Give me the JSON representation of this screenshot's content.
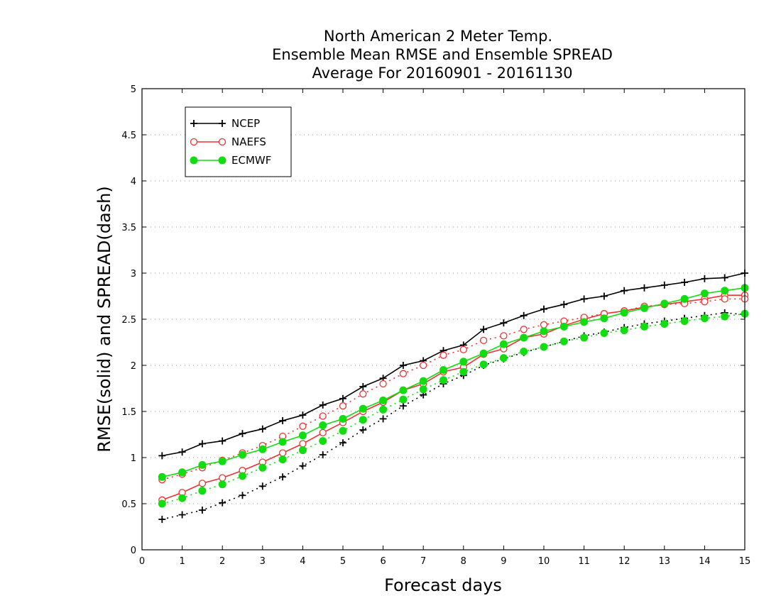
{
  "chart_data": {
    "type": "line",
    "title": [
      "North American 2 Meter Temp.",
      "Ensemble Mean RMSE and Ensemble SPREAD",
      "Average For 20160901 - 20161130"
    ],
    "xlabel": "Forecast days",
    "ylabel": "RMSE(solid) and SPREAD(dash)",
    "xlim": [
      0,
      15
    ],
    "ylim": [
      0,
      5
    ],
    "x_ticks": [
      "0",
      "1",
      "2",
      "3",
      "4",
      "5",
      "6",
      "7",
      "8",
      "9",
      "10",
      "11",
      "12",
      "13",
      "14",
      "15"
    ],
    "y_ticks": [
      "0",
      "0.5",
      "1",
      "1.5",
      "2",
      "2.5",
      "3",
      "3.5",
      "4",
      "4.5",
      "5"
    ],
    "grid": "horizontal dotted",
    "legend_position": "top-left",
    "x": [
      0.5,
      1,
      1.5,
      2,
      2.5,
      3,
      3.5,
      4,
      4.5,
      5,
      5.5,
      6,
      6.5,
      7,
      7.5,
      8,
      8.5,
      9,
      9.5,
      10,
      10.5,
      11,
      11.5,
      12,
      12.5,
      13,
      13.5,
      14,
      14.5,
      15
    ],
    "series": [
      {
        "name": "NCEP",
        "color": "#000000",
        "marker": "plus",
        "rmse": [
          1.02,
          1.06,
          1.15,
          1.18,
          1.26,
          1.31,
          1.4,
          1.46,
          1.57,
          1.64,
          1.77,
          1.86,
          2.0,
          2.05,
          2.16,
          2.22,
          2.39,
          2.46,
          2.54,
          2.61,
          2.66,
          2.72,
          2.75,
          2.81,
          2.84,
          2.87,
          2.9,
          2.94,
          2.95,
          3.0
        ],
        "spread": [
          0.33,
          0.38,
          0.43,
          0.51,
          0.59,
          0.69,
          0.79,
          0.91,
          1.03,
          1.16,
          1.3,
          1.42,
          1.56,
          1.68,
          1.8,
          1.89,
          2.0,
          2.07,
          2.14,
          2.2,
          2.26,
          2.32,
          2.36,
          2.41,
          2.45,
          2.48,
          2.51,
          2.54,
          2.57,
          2.55
        ]
      },
      {
        "name": "NAEFS",
        "color": "#ee3333",
        "marker": "open-circle",
        "rmse": [
          0.54,
          0.62,
          0.72,
          0.78,
          0.86,
          0.95,
          1.05,
          1.15,
          1.27,
          1.38,
          1.5,
          1.6,
          1.73,
          1.8,
          1.93,
          1.98,
          2.12,
          2.18,
          2.3,
          2.34,
          2.43,
          2.5,
          2.56,
          2.59,
          2.63,
          2.66,
          2.69,
          2.72,
          2.76,
          2.76
        ],
        "spread": [
          0.76,
          0.82,
          0.89,
          0.97,
          1.05,
          1.13,
          1.23,
          1.34,
          1.45,
          1.56,
          1.69,
          1.8,
          1.91,
          2.0,
          2.11,
          2.17,
          2.27,
          2.32,
          2.39,
          2.44,
          2.48,
          2.52,
          2.56,
          2.59,
          2.64,
          2.66,
          2.67,
          2.69,
          2.72,
          2.72
        ]
      },
      {
        "name": "ECMWF",
        "color": "#11dd11",
        "marker": "filled-circle",
        "rmse": [
          0.79,
          0.84,
          0.92,
          0.96,
          1.03,
          1.09,
          1.17,
          1.24,
          1.35,
          1.42,
          1.53,
          1.62,
          1.73,
          1.83,
          1.95,
          2.04,
          2.13,
          2.23,
          2.3,
          2.37,
          2.42,
          2.47,
          2.51,
          2.57,
          2.62,
          2.67,
          2.72,
          2.78,
          2.81,
          2.84
        ],
        "spread": [
          0.5,
          0.56,
          0.64,
          0.71,
          0.8,
          0.89,
          0.98,
          1.08,
          1.18,
          1.29,
          1.41,
          1.52,
          1.63,
          1.74,
          1.84,
          1.93,
          2.01,
          2.08,
          2.15,
          2.2,
          2.26,
          2.3,
          2.35,
          2.38,
          2.42,
          2.45,
          2.48,
          2.51,
          2.53,
          2.56
        ]
      }
    ]
  }
}
